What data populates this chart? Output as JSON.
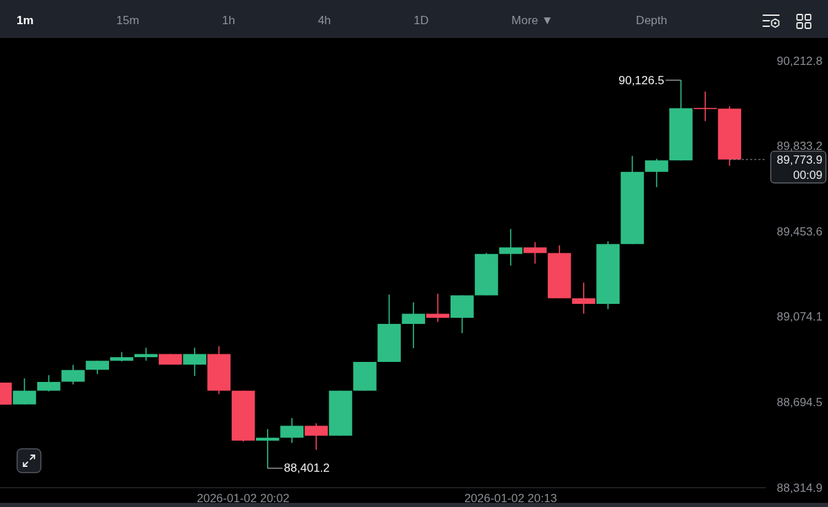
{
  "chart_data": {
    "type": "candlestick",
    "x": [
      "2026-01-02T19:52",
      "2026-01-02T19:53",
      "2026-01-02T19:54",
      "2026-01-02T19:55",
      "2026-01-02T19:56",
      "2026-01-02T19:57",
      "2026-01-02T19:58",
      "2026-01-02T19:59",
      "2026-01-02T20:00",
      "2026-01-02T20:01",
      "2026-01-02T20:02",
      "2026-01-02T20:03",
      "2026-01-02T20:04",
      "2026-01-02T20:05",
      "2026-01-02T20:06",
      "2026-01-02T20:07",
      "2026-01-02T20:08",
      "2026-01-02T20:09",
      "2026-01-02T20:10",
      "2026-01-02T20:11",
      "2026-01-02T20:12",
      "2026-01-02T20:13",
      "2026-01-02T20:14",
      "2026-01-02T20:15",
      "2026-01-02T20:16",
      "2026-01-02T20:17",
      "2026-01-02T20:18",
      "2026-01-02T20:19",
      "2026-01-02T20:20",
      "2026-01-02T20:21",
      "2026-01-02T20:22"
    ],
    "ohlc": [
      [
        88782,
        88782,
        88684,
        88684
      ],
      [
        88685,
        88801,
        88685,
        88746
      ],
      [
        88746,
        88815,
        88743,
        88785
      ],
      [
        88786,
        88861,
        88774,
        88838
      ],
      [
        88839,
        88879,
        88820,
        88879
      ],
      [
        88879,
        88918,
        88876,
        88895
      ],
      [
        88895,
        88937,
        88879,
        88909
      ],
      [
        88909,
        88909,
        88862,
        88862
      ],
      [
        88862,
        88937,
        88812,
        88909
      ],
      [
        88909,
        88944,
        88731,
        88746
      ],
      [
        88746,
        88746,
        88519,
        88524
      ],
      [
        88524,
        88575,
        88401.2,
        88537
      ],
      [
        88537,
        88624,
        88514,
        88590
      ],
      [
        88590,
        88601,
        88483,
        88546
      ],
      [
        88546,
        88746,
        88546,
        88746
      ],
      [
        88746,
        88874,
        88746,
        88874
      ],
      [
        88874,
        89173,
        88874,
        89043
      ],
      [
        89043,
        89139,
        88935,
        89088
      ],
      [
        89088,
        89177,
        89052,
        89070
      ],
      [
        89070,
        89170,
        89002,
        89170
      ],
      [
        89170,
        89358,
        89170,
        89354
      ],
      [
        89354,
        89465,
        89302,
        89383
      ],
      [
        89383,
        89407,
        89311,
        89358
      ],
      [
        89358,
        89392,
        89157,
        89157
      ],
      [
        89157,
        89226,
        89088,
        89132
      ],
      [
        89132,
        89410,
        89109,
        89398
      ],
      [
        89398,
        89790,
        89398,
        89719
      ],
      [
        89719,
        89777,
        89651,
        89770
      ],
      [
        89770,
        90126.5,
        89770,
        90002
      ],
      [
        90003,
        90076,
        89945,
        90000
      ],
      [
        90000,
        90011,
        89746,
        89773.9
      ]
    ],
    "colors": [
      "#f6465d",
      "#2ebd85",
      "#2ebd85",
      "#2ebd85",
      "#2ebd85",
      "#2ebd85",
      "#2ebd85",
      "#f6465d",
      "#2ebd85",
      "#f6465d",
      "#f6465d",
      "#2ebd85",
      "#2ebd85",
      "#f6465d",
      "#2ebd85",
      "#2ebd85",
      "#2ebd85",
      "#2ebd85",
      "#f6465d",
      "#2ebd85",
      "#2ebd85",
      "#2ebd85",
      "#f6465d",
      "#f6465d",
      "#f6465d",
      "#2ebd85",
      "#2ebd85",
      "#2ebd85",
      "#2ebd85",
      "#f6465d",
      "#f6465d"
    ],
    "xlim": [
      "2026-01-02T19:52",
      "2026-01-02T20:23:30"
    ],
    "xticks": [
      {
        "value": "2026-01-02T20:02",
        "label": "2026-01-02 20:02"
      },
      {
        "value": "2026-01-02T20:13",
        "label": "2026-01-02 20:13"
      }
    ],
    "ylim": [
      88314.9,
      90212.8
    ],
    "yticks": [
      {
        "value": 90212.8,
        "label": "90,212.8"
      },
      {
        "value": 89833.2,
        "label": "89,833.2"
      },
      {
        "value": 89453.6,
        "label": "89,453.6"
      },
      {
        "value": 89074.1,
        "label": "89,074.1"
      },
      {
        "value": 88694.5,
        "label": "88,694.5"
      },
      {
        "value": 88314.9,
        "label": "88,314.9"
      }
    ],
    "ref_lines": [
      {
        "axis": "y",
        "value": 89773.9,
        "label": "89,773.9\n00:09",
        "line_style": "dashed",
        "color": "#9a9da3"
      }
    ],
    "annotations": [
      "1m",
      "15m",
      "1h",
      "4h",
      "1D",
      "More ▼",
      "Depth",
      {
        "text": "90,126.5",
        "x": "2026-01-02T20:20",
        "y": 90126.5
      },
      {
        "text": "88,401.2",
        "x": "2026-01-02T20:03",
        "y": 88401.2
      }
    ]
  }
}
